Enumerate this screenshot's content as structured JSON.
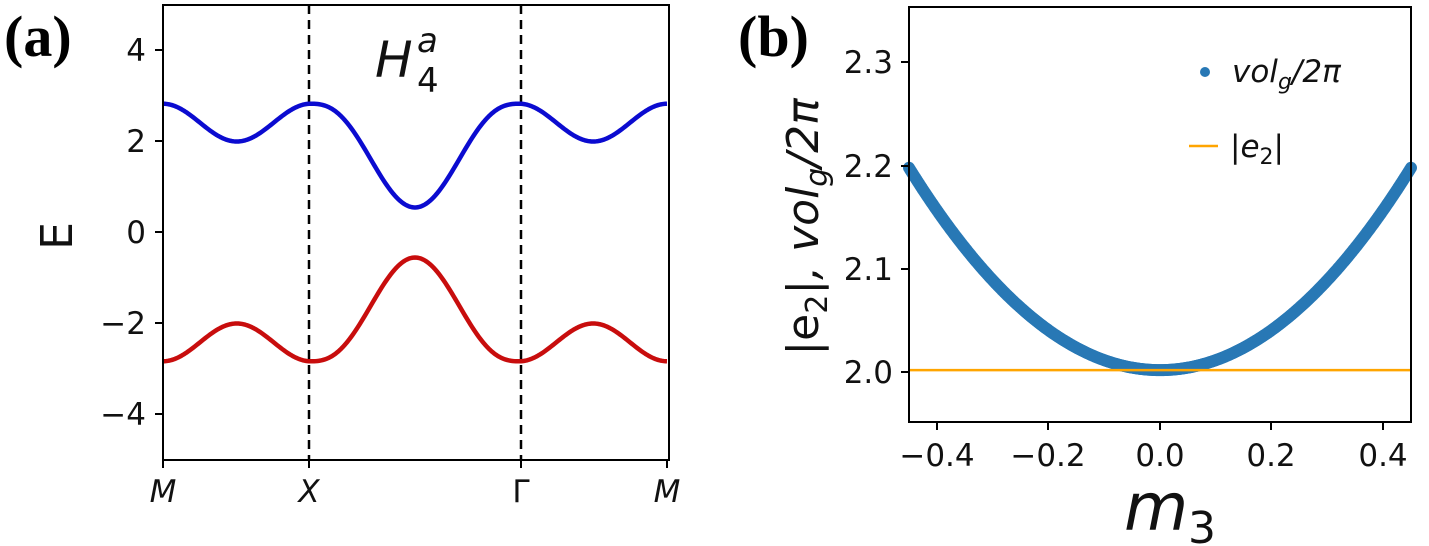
{
  "colors": {
    "upper_band": "#0b0bd0",
    "lower_band": "#c80d0d",
    "vol_series": "#2878b5",
    "e2_series": "#ffa500",
    "axes": "#000000"
  },
  "panel_a": {
    "label": "(a)",
    "title_main": "H",
    "title_sup": "a",
    "title_sub": "4",
    "ylabel": "E",
    "x_tick_labels": [
      "M",
      "X",
      "Γ",
      "M"
    ],
    "y_tick_labels": [
      "4",
      "2",
      "0",
      "−2",
      "−4"
    ]
  },
  "panel_b": {
    "label": "(b)",
    "ylabel_part1": "|e",
    "ylabel_part1_sub": "2",
    "ylabel_part2": "|, vol",
    "ylabel_part2_sub": "g",
    "ylabel_part3": "/2π",
    "xlabel_main": "m",
    "xlabel_sub": "3",
    "x_tick_labels": [
      "−0.4",
      "−0.2",
      "0.0",
      "0.2",
      "0.4"
    ],
    "y_tick_labels": [
      "2.3",
      "2.2",
      "2.1",
      "2.0"
    ],
    "legend": {
      "vol_main": "vol",
      "vol_sub": "g",
      "vol_suffix": "/2π",
      "e2_prefix": "|e",
      "e2_sub": "2",
      "e2_suffix": "|"
    }
  },
  "chart_data": [
    {
      "type": "line",
      "panel": "a",
      "title": "H4^a",
      "xlabel": "",
      "ylabel": "E",
      "x_path": [
        "M",
        "X",
        "Γ",
        "M"
      ],
      "x_segments": [
        {
          "from": "M",
          "to": "X",
          "length": 1.0
        },
        {
          "from": "X",
          "to": "Γ",
          "length": 1.414
        },
        {
          "from": "Γ",
          "to": "M",
          "length": 1.0
        }
      ],
      "vertical_dashed_lines_at": [
        "X",
        "Γ"
      ],
      "ylim": [
        -5,
        5
      ],
      "yticks": [
        -4,
        -2,
        0,
        2,
        4
      ],
      "series": [
        {
          "name": "upper band",
          "color": "#0b0bd0",
          "keypoints": [
            {
              "k": "M",
              "E": 2.83
            },
            {
              "k": "mid M-X",
              "E": 2.0
            },
            {
              "k": "X",
              "E": 2.83
            },
            {
              "k": "mid X-Γ",
              "E": 0.55
            },
            {
              "k": "Γ",
              "E": 2.83
            },
            {
              "k": "mid Γ-M",
              "E": 2.0
            },
            {
              "k": "M",
              "E": 2.83
            }
          ]
        },
        {
          "name": "lower band",
          "color": "#c80d0d",
          "keypoints": [
            {
              "k": "M",
              "E": -2.83
            },
            {
              "k": "mid M-X",
              "E": -2.0
            },
            {
              "k": "X",
              "E": -2.83
            },
            {
              "k": "mid X-Γ",
              "E": -0.55
            },
            {
              "k": "Γ",
              "E": -2.83
            },
            {
              "k": "mid Γ-M",
              "E": -2.0
            },
            {
              "k": "M",
              "E": -2.83
            }
          ]
        }
      ]
    },
    {
      "type": "scatter",
      "panel": "b",
      "xlabel": "m3",
      "ylabel": "|e2|, vol_g/2π",
      "xlim": [
        -0.45,
        0.45
      ],
      "ylim": [
        1.95,
        2.35
      ],
      "xticks": [
        -0.4,
        -0.2,
        0.0,
        0.2,
        0.4
      ],
      "yticks": [
        2.0,
        2.1,
        2.2,
        2.3
      ],
      "legend_position": "top-right",
      "series": [
        {
          "name": "vol_g/2π",
          "kind": "scatter",
          "color": "#2878b5",
          "x": [
            -0.45,
            -0.4,
            -0.35,
            -0.3,
            -0.25,
            -0.2,
            -0.15,
            -0.1,
            -0.05,
            0.0,
            0.05,
            0.1,
            0.15,
            0.2,
            0.25,
            0.3,
            0.35,
            0.4,
            0.45
          ],
          "y": [
            2.195,
            2.154,
            2.118,
            2.087,
            2.06,
            2.039,
            2.022,
            2.01,
            2.002,
            2.0,
            2.002,
            2.01,
            2.022,
            2.039,
            2.06,
            2.087,
            2.118,
            2.154,
            2.195
          ]
        },
        {
          "name": "|e2|",
          "kind": "line",
          "color": "#ffa500",
          "x": [
            -0.45,
            0.45
          ],
          "y": [
            2.0,
            2.0
          ]
        }
      ]
    }
  ]
}
